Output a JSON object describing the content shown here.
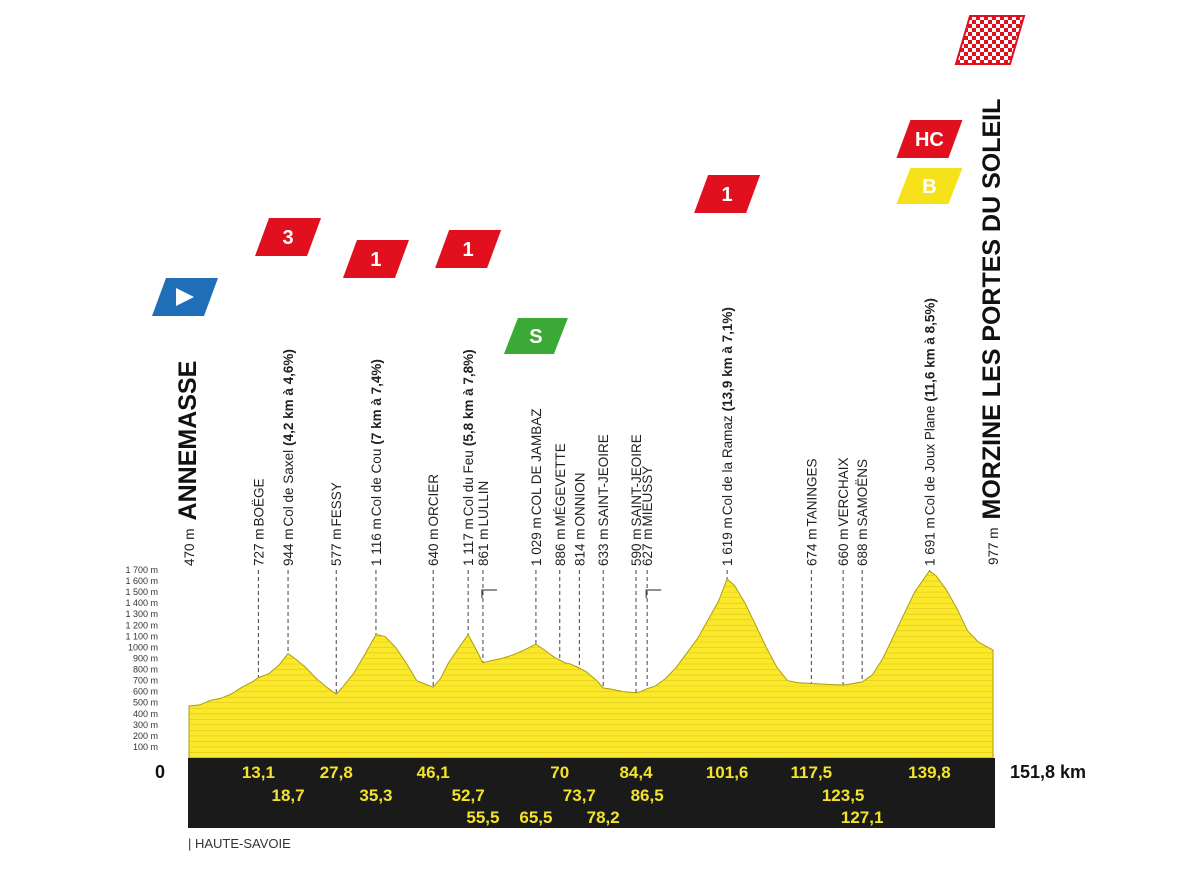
{
  "chart_data": {
    "type": "area",
    "title": "",
    "xlabel": "",
    "ylabel": "",
    "xlim": [
      0,
      151.8
    ],
    "ylim": [
      0,
      1700
    ],
    "colors": {
      "fill": "#fbe82b",
      "stroke": "#a89b10",
      "band": "#1a1a1a",
      "km_text": "#f2e22c"
    },
    "y_ticks": [
      {
        "v": 100,
        "label": "100 m"
      },
      {
        "v": 200,
        "label": "200 m"
      },
      {
        "v": 300,
        "label": "300 m"
      },
      {
        "v": 400,
        "label": "400 m"
      },
      {
        "v": 500,
        "label": "500 m"
      },
      {
        "v": 600,
        "label": "600 m"
      },
      {
        "v": 700,
        "label": "700 m"
      },
      {
        "v": 800,
        "label": "800 m"
      },
      {
        "v": 900,
        "label": "900 m"
      },
      {
        "v": 1000,
        "label": "1000 m"
      },
      {
        "v": 1100,
        "label": "1 100 m"
      },
      {
        "v": 1200,
        "label": "1 200 m"
      },
      {
        "v": 1300,
        "label": "1 300 m"
      },
      {
        "v": 1400,
        "label": "1 400 m"
      },
      {
        "v": 1500,
        "label": "1 500 m"
      },
      {
        "v": 1600,
        "label": "1 600 m"
      },
      {
        "v": 1700,
        "label": "1 700 m"
      }
    ],
    "profile": {
      "x": [
        0,
        2,
        4,
        6,
        8,
        10,
        12,
        13.1,
        15,
        17,
        18.7,
        20,
        22,
        24,
        26,
        27.8,
        29,
        31,
        33,
        35.3,
        37,
        39,
        41,
        43,
        45,
        46.1,
        47.5,
        49,
        51,
        52.7,
        54,
        55.5,
        57,
        59,
        61,
        63,
        65.5,
        67,
        69,
        70,
        71,
        72,
        73.7,
        75,
        77,
        78.2,
        80,
        82,
        84.4,
        85.5,
        86.5,
        88,
        90,
        92,
        94,
        96,
        98,
        100,
        101.6,
        103,
        105,
        107,
        109,
        111,
        113,
        115,
        117.5,
        119,
        121,
        123.5,
        125,
        127.1,
        129,
        131,
        133,
        135,
        137,
        139.8,
        141,
        143,
        145,
        147,
        149,
        151.8
      ],
      "y": [
        470,
        480,
        520,
        540,
        580,
        640,
        690,
        727,
        760,
        840,
        944,
        900,
        820,
        720,
        640,
        577,
        640,
        760,
        920,
        1116,
        1100,
        1000,
        860,
        700,
        660,
        640,
        720,
        860,
        1000,
        1117,
        1000,
        861,
        880,
        900,
        930,
        970,
        1029,
        980,
        910,
        886,
        860,
        850,
        814,
        780,
        700,
        633,
        620,
        600,
        590,
        605,
        627,
        650,
        720,
        820,
        950,
        1080,
        1250,
        1420,
        1619,
        1560,
        1400,
        1200,
        1000,
        820,
        700,
        680,
        674,
        670,
        665,
        660,
        670,
        688,
        750,
        900,
        1100,
        1300,
        1500,
        1691,
        1650,
        1520,
        1350,
        1150,
        1050,
        977
      ]
    },
    "markers": [
      {
        "km": 0,
        "km_label": "0",
        "alt": "470 m",
        "name": "ANNEMASSE",
        "detail": "",
        "start": true,
        "row": 0
      },
      {
        "km": 13.1,
        "km_label": "13,1",
        "alt": "727 m",
        "name": "BOËGE",
        "detail": "",
        "row": 0
      },
      {
        "km": 18.7,
        "km_label": "18,7",
        "alt": "944 m",
        "name": "Col de Saxel",
        "detail": "(4,2 km à 4,6%)",
        "row": 1
      },
      {
        "km": 27.8,
        "km_label": "27,8",
        "alt": "577 m",
        "name": "FESSY",
        "detail": "",
        "row": 0
      },
      {
        "km": 35.3,
        "km_label": "35,3",
        "alt": "1 116 m",
        "name": "Col de Cou",
        "detail": "(7 km à 7,4%)",
        "row": 1
      },
      {
        "km": 46.1,
        "km_label": "46,1",
        "alt": "640 m",
        "name": "ORCIER",
        "detail": "",
        "row": 0
      },
      {
        "km": 52.7,
        "km_label": "52,7",
        "alt": "1 117 m",
        "name": "Col du Feu",
        "detail": "(5,8 km à 7,8%)",
        "row": 1
      },
      {
        "km": 55.5,
        "km_label": "55,5",
        "alt": "861 m",
        "name": "LULLIN",
        "detail": "",
        "row": 2,
        "elbow": true
      },
      {
        "km": 65.5,
        "km_label": "65,5",
        "alt": "1 029 m",
        "name": "COL DE JAMBAZ",
        "detail": "",
        "row": 2
      },
      {
        "km": 70,
        "km_label": "70",
        "alt": "886 m",
        "name": "MÉGEVETTE",
        "detail": "",
        "row": 0
      },
      {
        "km": 73.7,
        "km_label": "73,7",
        "alt": "814 m",
        "name": "ONNION",
        "detail": "",
        "row": 1
      },
      {
        "km": 78.2,
        "km_label": "78,2",
        "alt": "633 m",
        "name": "SAINT-JEOIRE",
        "detail": "",
        "row": 2
      },
      {
        "km": 84.4,
        "km_label": "84,4",
        "alt": "590 m",
        "name": "SAINT-JEOIRE",
        "detail": "",
        "row": 0
      },
      {
        "km": 86.5,
        "km_label": "86,5",
        "alt": "627 m",
        "name": "MIEUSSY",
        "detail": "",
        "row": 1,
        "elbow": true
      },
      {
        "km": 101.6,
        "km_label": "101,6",
        "alt": "1 619 m",
        "name": "Col de la Ramaz",
        "detail": "(13,9 km à 7,1%)",
        "row": 0
      },
      {
        "km": 117.5,
        "km_label": "117,5",
        "alt": "674 m",
        "name": "TANINGES",
        "detail": "",
        "row": 0
      },
      {
        "km": 123.5,
        "km_label": "123,5",
        "alt": "660 m",
        "name": "VERCHAIX",
        "detail": "",
        "row": 1
      },
      {
        "km": 127.1,
        "km_label": "127,1",
        "alt": "688 m",
        "name": "SAMOËNS",
        "detail": "",
        "row": 2
      },
      {
        "km": 139.8,
        "km_label": "139,8",
        "alt": "1 691 m",
        "name": "Col de Joux Plane",
        "detail": "(11,6 km à 8,5%)",
        "row": 0
      },
      {
        "km": 151.8,
        "km_label": "151,8 km",
        "alt": "977 m",
        "name": "MORZINE LES PORTES DU SOLEIL",
        "detail": "",
        "finish": true,
        "row": 0
      }
    ],
    "flags": [
      {
        "km": 0,
        "type": "start",
        "color": "#1f6fb8",
        "label": ""
      },
      {
        "km": 18.7,
        "type": "cat",
        "color": "#e0101e",
        "label": "3"
      },
      {
        "km": 35.3,
        "type": "cat",
        "color": "#e0101e",
        "label": "1"
      },
      {
        "km": 52.7,
        "type": "cat",
        "color": "#e0101e",
        "label": "1"
      },
      {
        "km": 65.5,
        "type": "sprint",
        "color": "#3aa935",
        "label": "S"
      },
      {
        "km": 101.6,
        "type": "cat",
        "color": "#e0101e",
        "label": "1"
      },
      {
        "km": 139.8,
        "type": "cat",
        "color": "#e0101e",
        "label": "HC"
      },
      {
        "km": 139.8,
        "type": "bonus",
        "color": "#f6e21a",
        "label": "B"
      },
      {
        "km": 151.8,
        "type": "finish",
        "color": "#e0101e",
        "label": ""
      }
    ],
    "region": "HAUTE-SAVOIE"
  }
}
